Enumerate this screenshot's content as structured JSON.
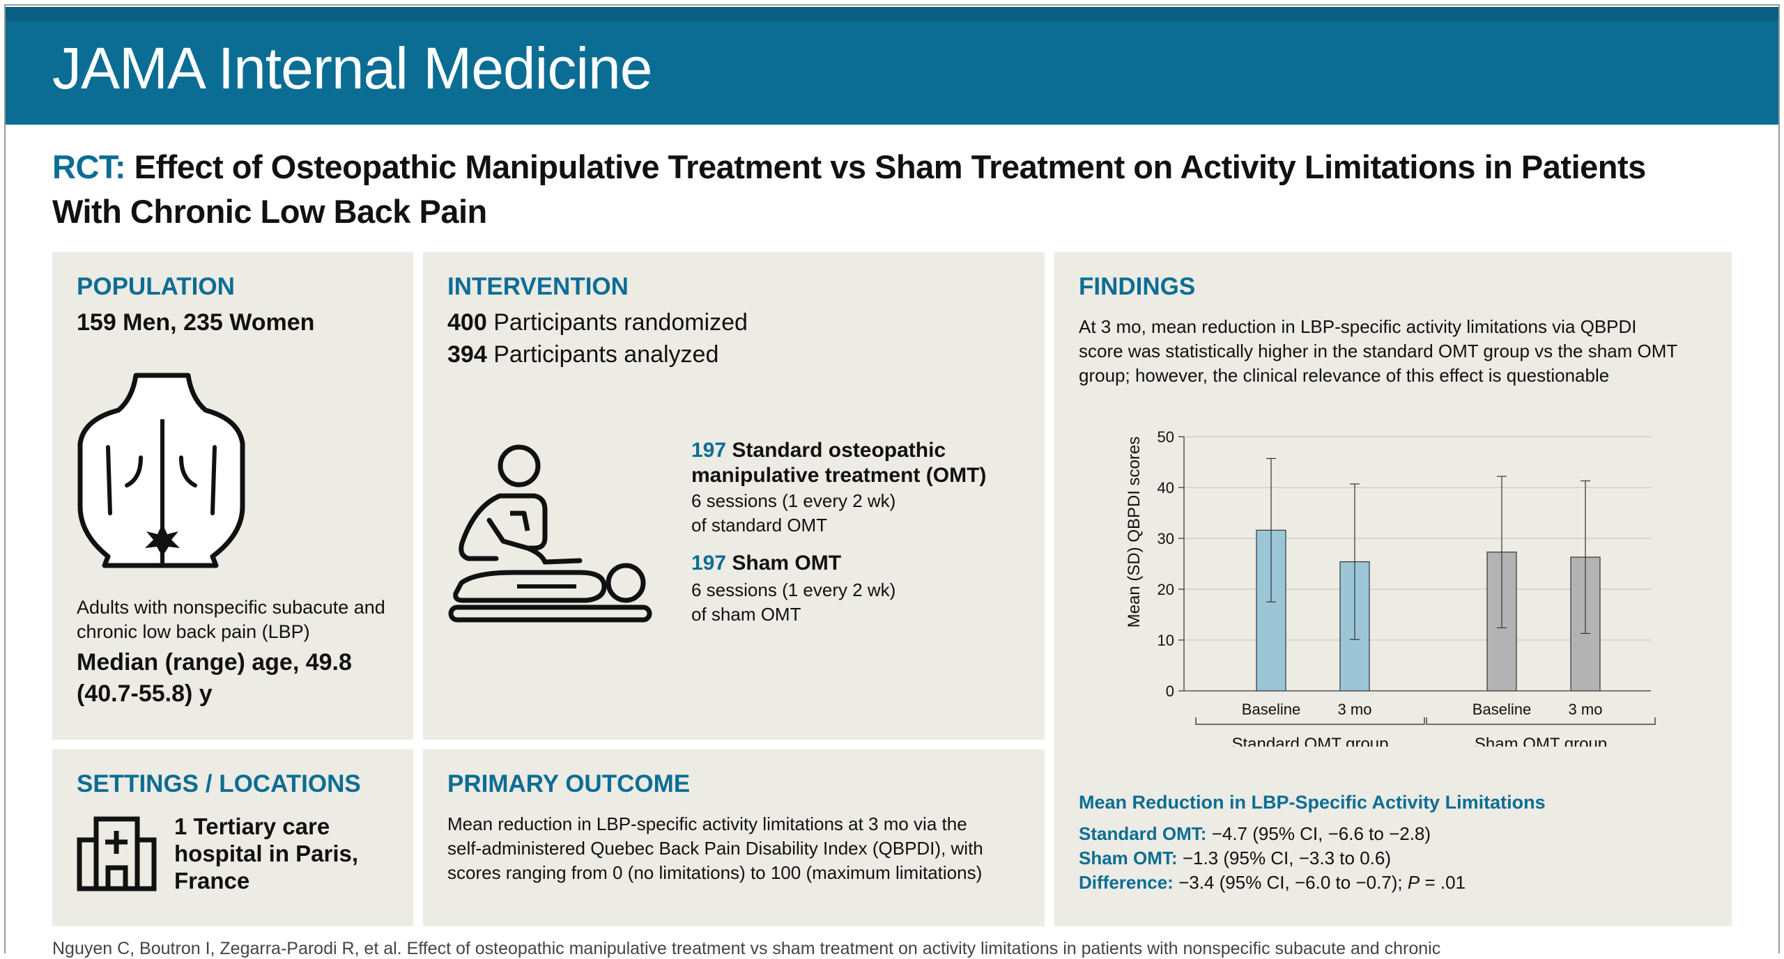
{
  "journal": {
    "title": "JAMA Internal Medicine"
  },
  "title": {
    "prefix": "RCT:",
    "line1": "Effect of Osteopathic Manipulative Treatment vs Sham Treatment on Activity Limitations in Patients",
    "line2": "With Chronic Low Back Pain"
  },
  "population": {
    "heading": "POPULATION",
    "counts": "159 Men, 235 Women",
    "desc_line1": "Adults with nonspecific subacute and",
    "desc_line2": "chronic low back pain (LBP)",
    "age_line1": "Median (range) age, 49.8",
    "age_line2": "(40.7-55.8) y",
    "icon": "back-pain-icon"
  },
  "intervention": {
    "heading": "INTERVENTION",
    "randomized_num": "400",
    "randomized_label": "Participants randomized",
    "analyzed_num": "394",
    "analyzed_label": "Participants analyzed",
    "icon": "osteopathic-treatment-icon",
    "group1_num": "197",
    "group1_title_line1": "Standard osteopathic",
    "group1_title_line2": "manipulative treatment (OMT)",
    "group1_desc_line1": "6 sessions (1 every 2 wk)",
    "group1_desc_line2": "of standard OMT",
    "group2_num": "197",
    "group2_title": "Sham OMT",
    "group2_desc_line1": "6 sessions (1 every 2 wk)",
    "group2_desc_line2": "of sham OMT"
  },
  "findings": {
    "heading": "FINDINGS",
    "text_line1": "At 3 mo, mean reduction in LBP-specific activity limitations via QBPDI",
    "text_line2": "score was statistically higher in the standard OMT group vs the sham OMT",
    "text_line3": "group; however, the clinical relevance of this effect is questionable",
    "summary_heading": "Mean Reduction in LBP-Specific Activity Limitations",
    "standard_label": "Standard OMT:",
    "standard_value": "−4.7 (95% CI, −6.6 to −2.8)",
    "sham_label": "Sham OMT:",
    "sham_value": "−1.3 (95% CI, −3.3 to 0.6)",
    "diff_label": "Difference:",
    "diff_value": "−3.4 (95% CI, −6.0 to −0.7);",
    "p_label": "P",
    "p_value": "= .01"
  },
  "settings": {
    "heading": "SETTINGS / LOCATIONS",
    "line1": "1 Tertiary care",
    "line2": "hospital in Paris,",
    "line3": "France",
    "icon": "hospital-icon"
  },
  "outcome": {
    "heading": "PRIMARY OUTCOME",
    "line1": "Mean reduction in LBP-specific activity limitations at 3 mo via the",
    "line2": "self-administered Quebec Back Pain Disability Index (QBPDI), with",
    "line3": "scores ranging from 0 (no limitations) to 100 (maximum limitations)"
  },
  "citation": "Nguyen C, Boutron I, Zegarra-Parodi R, et al. Effect of osteopathic manipulative treatment vs sham treatment on activity limitations in patients with nonspecific subacute and chronic",
  "chart_data": {
    "type": "bar",
    "ylabel": "Mean (SD) QBPDI scores",
    "ylim": [
      0,
      50
    ],
    "yticks": [
      0,
      10,
      20,
      30,
      40,
      50
    ],
    "categories": [
      "Baseline",
      "3 mo",
      "Baseline",
      "3 mo"
    ],
    "groups": [
      "Standard OMT group",
      "Sham OMT group"
    ],
    "values": [
      31.6,
      25.4,
      27.3,
      26.3
    ],
    "sd": [
      14.1,
      15.3,
      14.9,
      15.0
    ],
    "colors": [
      "#9cc6d8",
      "#9cc6d8",
      "#b3b3b3",
      "#b3b3b3"
    ],
    "grid": true
  }
}
